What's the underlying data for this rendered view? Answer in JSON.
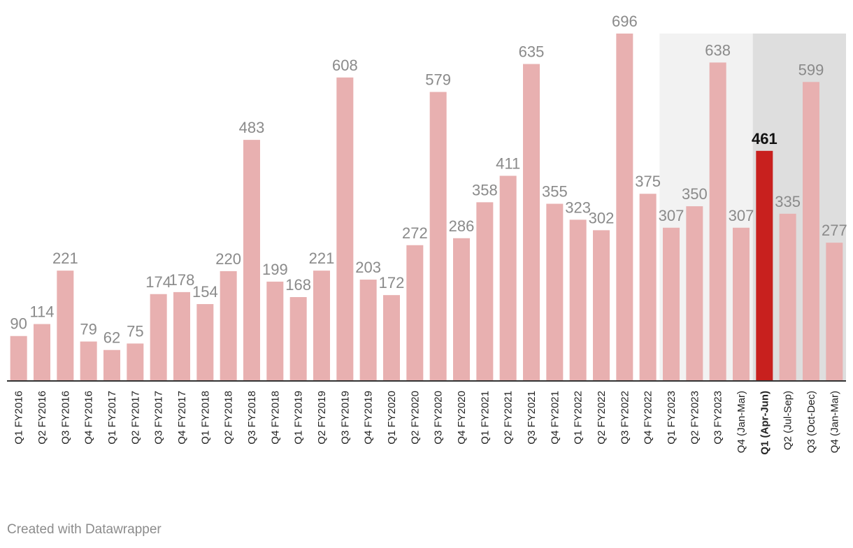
{
  "chart_data": {
    "type": "bar",
    "categories": [
      "Q1 FY2016",
      "Q2 FY2016",
      "Q3 FY2016",
      "Q4 FY2016",
      "Q1 FY2017",
      "Q2 FY2017",
      "Q3 FY2017",
      "Q4 FY2017",
      "Q1 FY2018",
      "Q2 FY2018",
      "Q3 FY2018",
      "Q4 FY2018",
      "Q1 FY2019",
      "Q2 FY2019",
      "Q3 FY2019",
      "Q4 FY2019",
      "Q1 FY2020",
      "Q2 FY2020",
      "Q3 FY2020",
      "Q4 FY2020",
      "Q1 FY2021",
      "Q2 FY2021",
      "Q3 FY2021",
      "Q4 FY2021",
      "Q1 FY2022",
      "Q2 FY2022",
      "Q3 FY2022",
      "Q4 FY2022",
      "Q1 FY2023",
      "Q2 FY2023",
      "Q3 FY2023",
      "Q4 (Jan-Mar)",
      "Q1 (Apr-Jun)",
      "Q2 (Jul-Sep)",
      "Q3 (Oct-Dec)",
      "Q4 (Jan-Mar)"
    ],
    "values": [
      90,
      114,
      221,
      79,
      62,
      75,
      174,
      178,
      154,
      220,
      483,
      199,
      168,
      221,
      608,
      203,
      172,
      272,
      579,
      286,
      358,
      411,
      635,
      355,
      323,
      302,
      696,
      375,
      307,
      350,
      638,
      307,
      461,
      335,
      599,
      277
    ],
    "highlight_index": 32,
    "shaded_ranges": [
      {
        "from_index": 28,
        "to_index": 31,
        "color": "#f2f2f2"
      },
      {
        "from_index": 32,
        "to_index": 35,
        "color": "#dedede"
      }
    ],
    "ylim": [
      0,
      696
    ],
    "bar_color": "#e8b0b0",
    "highlight_color": "#c8201e",
    "axis_color": "#333333"
  },
  "footer": {
    "credit": "Created with Datawrapper"
  }
}
